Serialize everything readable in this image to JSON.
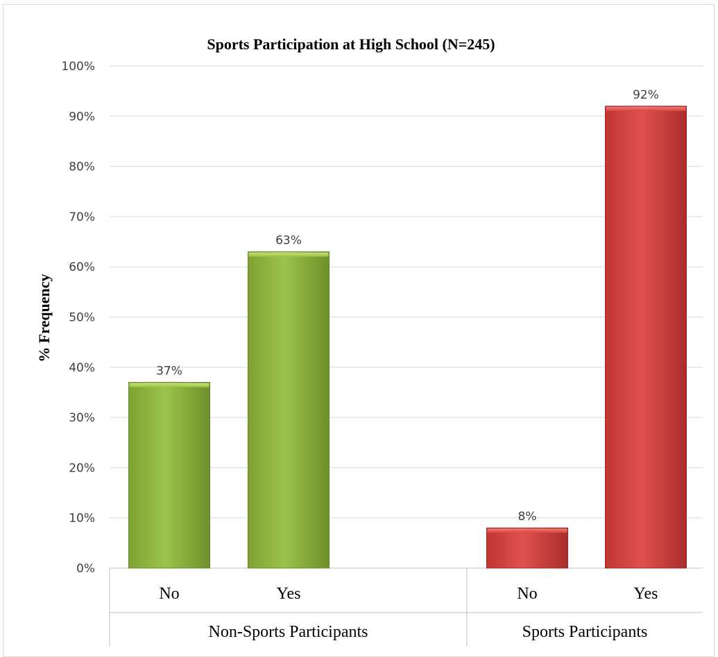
{
  "chart_data": {
    "type": "bar",
    "title": "Sports Participation at High School (N=245)",
    "xlabel": "",
    "ylabel": "% Frequency",
    "ylim": [
      0,
      100
    ],
    "yticks": [
      "0%",
      "10%",
      "20%",
      "30%",
      "40%",
      "50%",
      "60%",
      "70%",
      "80%",
      "90%",
      "100%"
    ],
    "grid": true,
    "legend": "none",
    "groups": [
      {
        "label": "Non-Sports Participants",
        "categories": [
          "No",
          "Yes"
        ]
      },
      {
        "label": "Sports Participants",
        "categories": [
          "No",
          "Yes"
        ]
      }
    ],
    "bars": [
      {
        "group": "Non-Sports Participants",
        "category": "No",
        "value": 37,
        "label": "37%",
        "color": "#8db33c"
      },
      {
        "group": "Non-Sports Participants",
        "category": "Yes",
        "value": 63,
        "label": "63%",
        "color": "#8db33c"
      },
      {
        "group": "Sports Participants",
        "category": "No",
        "value": 8,
        "label": "8%",
        "color": "#d33f3c"
      },
      {
        "group": "Sports Participants",
        "category": "Yes",
        "value": 92,
        "label": "92%",
        "color": "#d33f3c"
      }
    ]
  }
}
